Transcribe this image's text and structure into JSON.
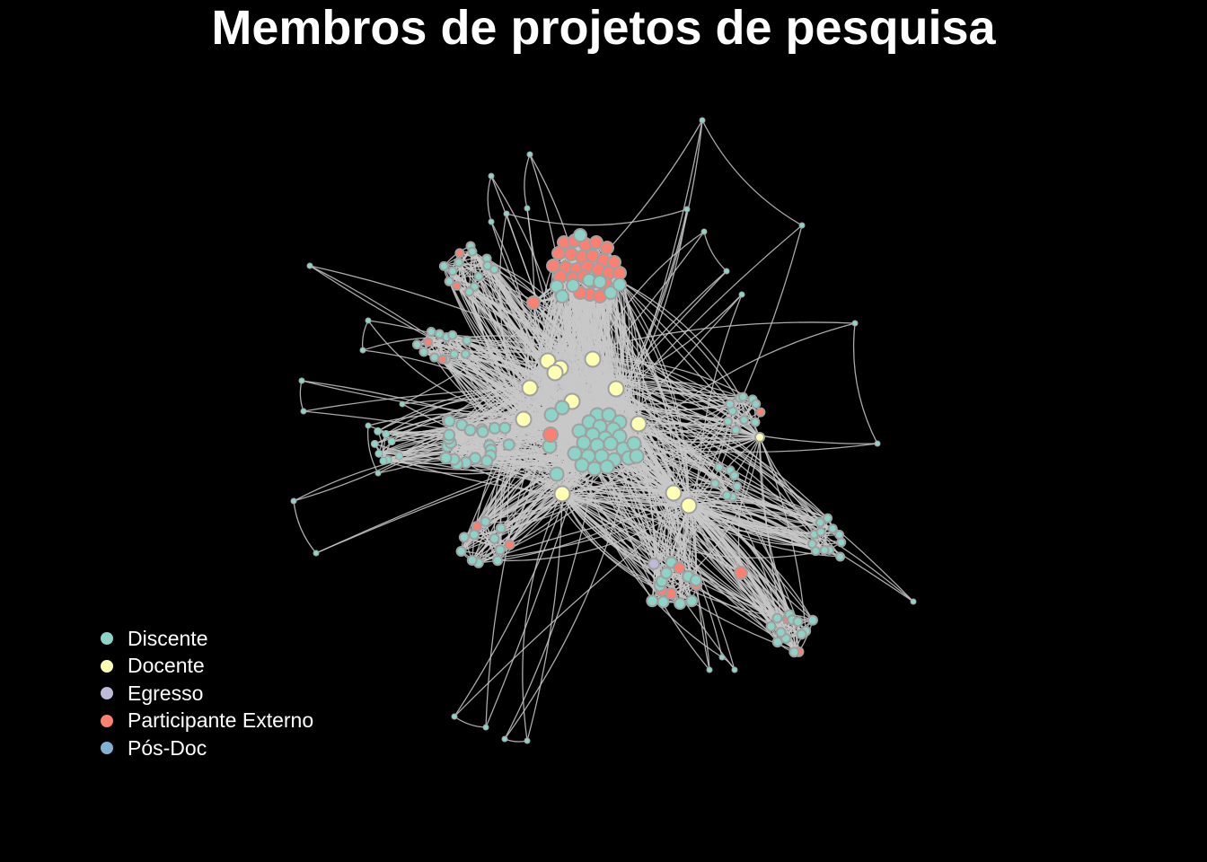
{
  "title": "Membros de projetos de pesquisa",
  "colors": {
    "background": "#000000",
    "edge": "#c8c8c8",
    "node_border": "#a0a0a0"
  },
  "legend": {
    "items": [
      {
        "label": "Discente",
        "color": "#8dd3c7"
      },
      {
        "label": "Docente",
        "color": "#ffffb3"
      },
      {
        "label": "Egresso",
        "color": "#bebada"
      },
      {
        "label": "Participante Externo",
        "color": "#fb8072"
      },
      {
        "label": "Pós-Doc",
        "color": "#80b1d3"
      }
    ]
  }
}
